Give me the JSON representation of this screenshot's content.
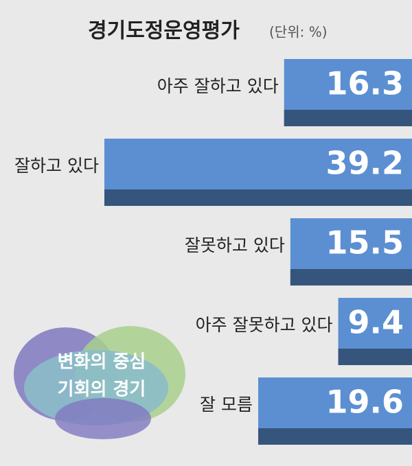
{
  "chart_data": {
    "type": "hbar",
    "title": "경기도정운영평가",
    "subtitle": "(단위: %)",
    "categories": [
      "아주 잘하고 있다",
      "잘하고 있다",
      "잘못하고 있다",
      "아주 잘못하고 있다",
      "잘 모름"
    ],
    "values": [
      16.3,
      39.2,
      15.5,
      9.4,
      19.6
    ],
    "color": "#5b8fd1"
  },
  "logo": {
    "lines": [
      "변화의 중심",
      "기회의 경기"
    ]
  }
}
